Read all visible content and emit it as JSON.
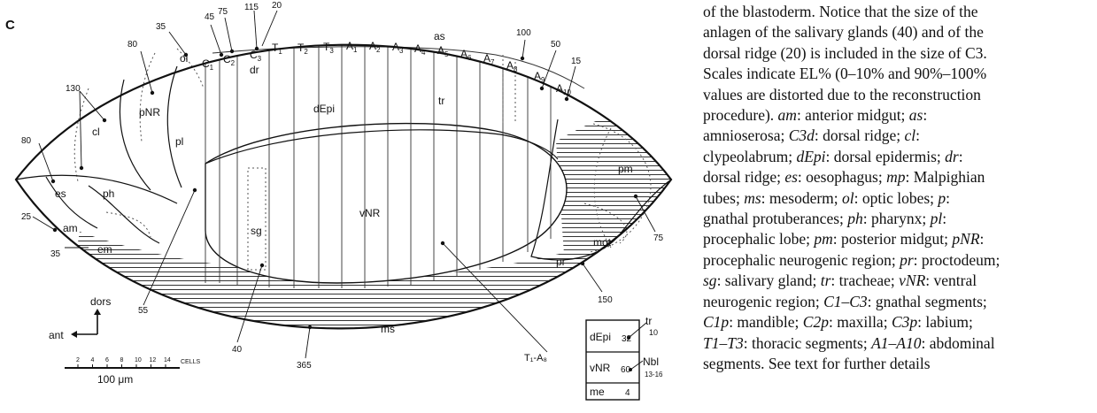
{
  "panel_letter": "C",
  "labels": {
    "ol": "ol",
    "c1": "C",
    "c1_sub": "1",
    "c2": "C",
    "c2_sub": "2",
    "c3": "C",
    "c3_sub": "3",
    "dr": "dr",
    "as": "as",
    "pnr": "pNR",
    "cl": "cl",
    "pl": "pl",
    "es": "es",
    "ph": "ph",
    "am": "am",
    "em": "em",
    "depi": "dEpi",
    "tr": "tr",
    "vnr": "vNR",
    "sg": "sg",
    "pm": "pm",
    "mot": "mot",
    "pr": "pr",
    "ms": "ms",
    "t1a8": "T₁-A₈"
  },
  "segments": [
    {
      "main": "T",
      "sub": "1"
    },
    {
      "main": "T",
      "sub": "2"
    },
    {
      "main": "T",
      "sub": "3"
    },
    {
      "main": "A",
      "sub": "1"
    },
    {
      "main": "A",
      "sub": "2"
    },
    {
      "main": "A",
      "sub": "3"
    },
    {
      "main": "A",
      "sub": "4"
    },
    {
      "main": "A",
      "sub": "5"
    },
    {
      "main": "A",
      "sub": "6"
    },
    {
      "main": "A",
      "sub": "7"
    },
    {
      "main": "A",
      "sub": "8"
    },
    {
      "main": "A",
      "sub": "9"
    },
    {
      "main": "A",
      "sub": "10"
    }
  ],
  "counts": {
    "n45": "45",
    "n75_top": "75",
    "n115": "115",
    "n20": "20",
    "n35_top": "35",
    "n80_top": "80",
    "n130": "130",
    "n80_left": "80",
    "n25": "25",
    "n35_left": "35",
    "n55": "55",
    "n40": "40",
    "n365": "365",
    "n100": "100",
    "n50": "50",
    "n15": "15",
    "n75_right": "75",
    "n150": "150"
  },
  "orientation": {
    "dors": "dors",
    "ant": "ant"
  },
  "scale": {
    "ticks": [
      "2",
      "4",
      "6",
      "8",
      "10",
      "12",
      "14"
    ],
    "unit": "CELLS",
    "length": "100 μm"
  },
  "legend_table": {
    "rows": [
      {
        "label": "dEpi",
        "value": "32"
      },
      {
        "label": "vNR",
        "value": "60"
      },
      {
        "label": "me",
        "value": "4"
      }
    ],
    "tr_label": "tr",
    "tr_value": "10",
    "nbl_label": "Nbl",
    "nbl_value": "13-16"
  },
  "caption": {
    "lines": [
      [
        {
          "t": "of the blastoderm. Notice that the size of the"
        }
      ],
      [
        {
          "t": "anlagen of the salivary glands (40) and of the"
        }
      ],
      [
        {
          "t": "dorsal ridge (20) is included in the size of C3."
        }
      ],
      [
        {
          "t": "Scales indicate EL% (0–10% and 90%–100%"
        }
      ],
      [
        {
          "t": "values are distorted due to the reconstruction"
        }
      ],
      [
        {
          "t": "procedure). "
        },
        {
          "t": "am",
          "i": true
        },
        {
          "t": ": anterior midgut; "
        },
        {
          "t": "as",
          "i": true
        },
        {
          "t": ":"
        }
      ],
      [
        {
          "t": "amnioserosa; "
        },
        {
          "t": "C3d",
          "i": true
        },
        {
          "t": ": dorsal ridge; "
        },
        {
          "t": "cl",
          "i": true
        },
        {
          "t": ":"
        }
      ],
      [
        {
          "t": "clypeolabrum; "
        },
        {
          "t": "dEpi",
          "i": true
        },
        {
          "t": ": dorsal epidermis; "
        },
        {
          "t": "dr",
          "i": true
        },
        {
          "t": ":"
        }
      ],
      [
        {
          "t": "dorsal ridge; "
        },
        {
          "t": "es",
          "i": true
        },
        {
          "t": ": oesophagus; "
        },
        {
          "t": "mp",
          "i": true
        },
        {
          "t": ": Malpighian"
        }
      ],
      [
        {
          "t": "tubes; "
        },
        {
          "t": "ms",
          "i": true
        },
        {
          "t": ": mesoderm; "
        },
        {
          "t": "ol",
          "i": true
        },
        {
          "t": ": optic lobes; "
        },
        {
          "t": "p",
          "i": true
        },
        {
          "t": ":"
        }
      ],
      [
        {
          "t": "gnathal protuberances; "
        },
        {
          "t": "ph",
          "i": true
        },
        {
          "t": ": pharynx; "
        },
        {
          "t": "pl",
          "i": true
        },
        {
          "t": ":"
        }
      ],
      [
        {
          "t": "procephalic lobe; "
        },
        {
          "t": "pm",
          "i": true
        },
        {
          "t": ": posterior midgut; "
        },
        {
          "t": "pNR",
          "i": true
        },
        {
          "t": ":"
        }
      ],
      [
        {
          "t": "procephalic neurogenic region; "
        },
        {
          "t": "pr",
          "i": true
        },
        {
          "t": ": proctodeum;"
        }
      ],
      [
        {
          "t": "sg",
          "i": true
        },
        {
          "t": ": salivary gland; "
        },
        {
          "t": "tr",
          "i": true
        },
        {
          "t": ": tracheae; "
        },
        {
          "t": "vNR",
          "i": true
        },
        {
          "t": ": ventral"
        }
      ],
      [
        {
          "t": "neurogenic region; "
        },
        {
          "t": "C1–C3",
          "i": true
        },
        {
          "t": ": gnathal segments;"
        }
      ],
      [
        {
          "t": "C1p",
          "i": true
        },
        {
          "t": ": mandible; "
        },
        {
          "t": "C2p",
          "i": true
        },
        {
          "t": ": maxilla; "
        },
        {
          "t": "C3p",
          "i": true
        },
        {
          "t": ": labium;"
        }
      ],
      [
        {
          "t": "T1–T3",
          "i": true
        },
        {
          "t": ": thoracic segments; "
        },
        {
          "t": "A1–A10",
          "i": true
        },
        {
          "t": ": abdominal"
        }
      ],
      [
        {
          "t": "segments. See text for further details"
        }
      ]
    ]
  }
}
